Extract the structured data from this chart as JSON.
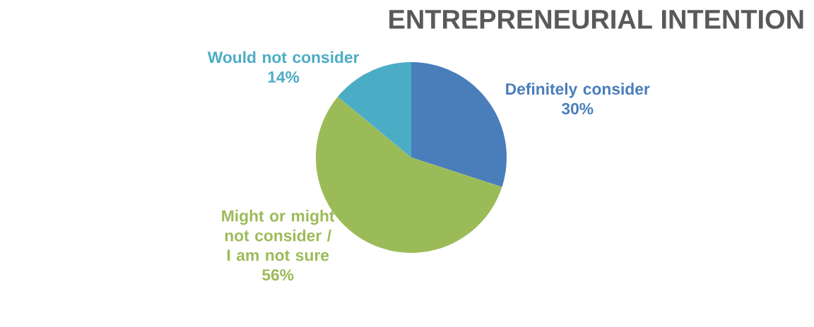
{
  "chart_data": {
    "type": "pie",
    "title": "ENTREPRENEURIAL INTENTION",
    "categories": [
      "Definitely consider",
      "Might or might not consider / I am not sure",
      "Would not consider"
    ],
    "values": [
      30,
      56,
      14
    ],
    "colors": [
      "#4a7ebb",
      "#9bbb59",
      "#4bacc6"
    ],
    "value_labels": [
      "30%",
      "56%",
      "14%"
    ],
    "data_labels": true
  }
}
